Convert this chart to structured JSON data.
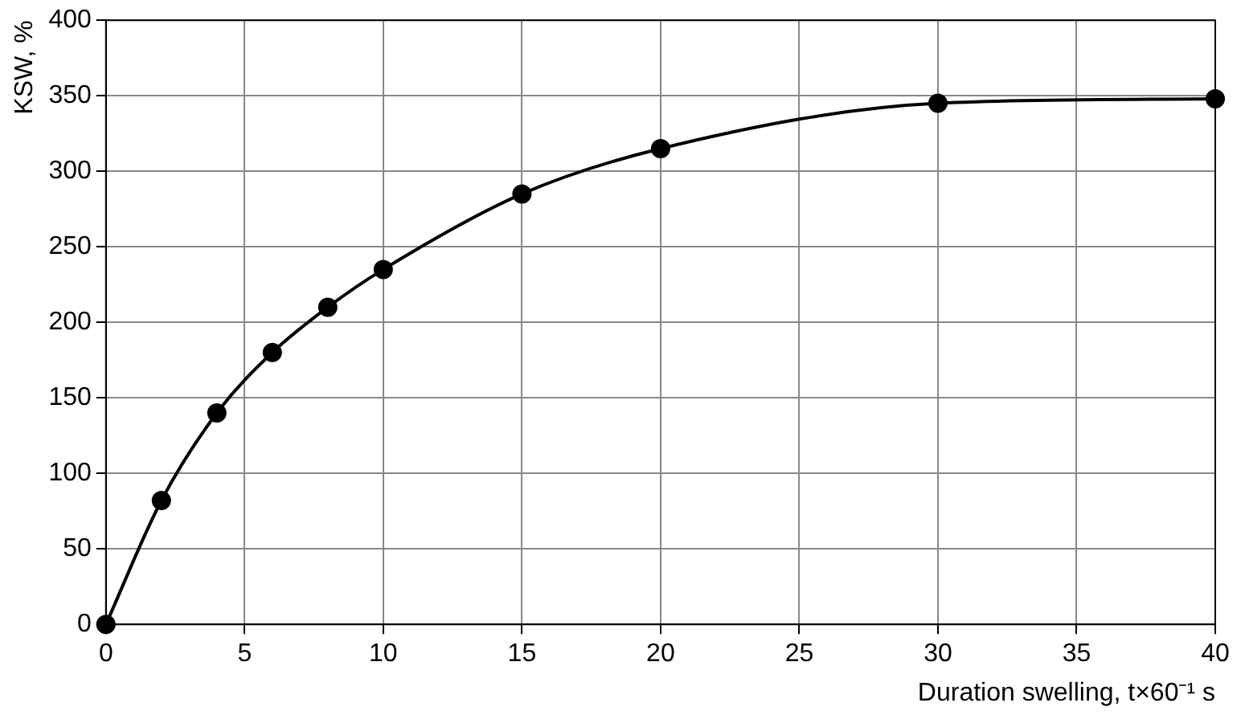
{
  "chart_data": {
    "type": "line",
    "xlabel": "Duration swelling, t×60⁻¹ s",
    "ylabel": "KSW, %",
    "x": [
      0,
      2,
      4,
      6,
      8,
      10,
      15,
      20,
      30,
      40
    ],
    "series": [
      {
        "color": "#000000",
        "values": [
          0,
          82,
          140,
          180,
          210,
          235,
          285,
          315,
          345,
          348
        ]
      }
    ],
    "xlim": [
      0,
      40
    ],
    "xticks": [
      0,
      5,
      10,
      15,
      20,
      25,
      30,
      35,
      40
    ],
    "ylim": [
      0,
      400
    ],
    "yticks": [
      0,
      50,
      100,
      150,
      200,
      250,
      300,
      350,
      400
    ],
    "grid": true,
    "legend": false,
    "marker": "circle",
    "line_style": "solid"
  }
}
